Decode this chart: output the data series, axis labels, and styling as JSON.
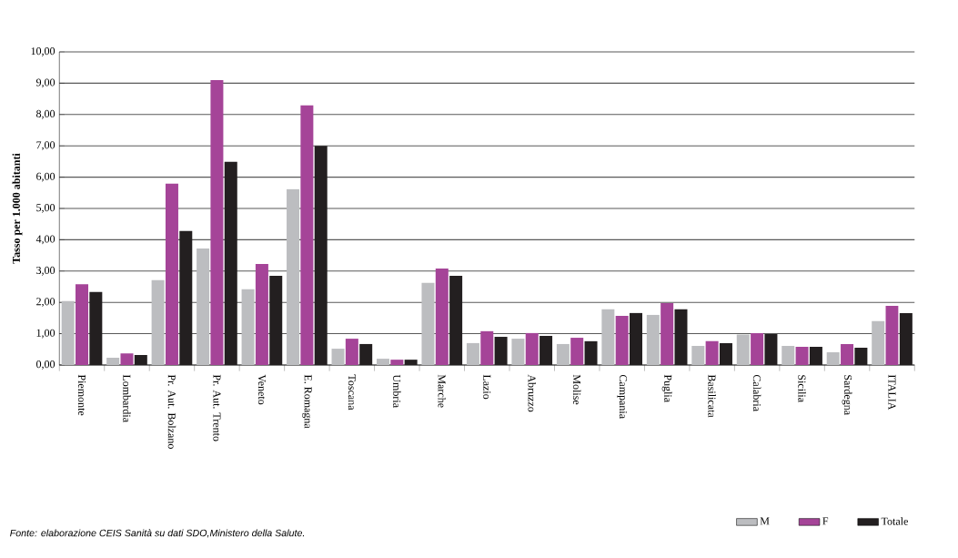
{
  "chart_data": {
    "type": "bar",
    "ylabel": "Tasso per 1.000 abitanti",
    "categories": [
      "Piemonte",
      "Lombardia",
      "Pr. Aut. Bolzano",
      "Pr. Aut. Trento",
      "Veneto",
      "E. Romagna",
      "Toscana",
      "Umbria",
      "Marche",
      "Lazio",
      "Abruzzo",
      "Molise",
      "Campania",
      "Puglia",
      "Basilicata",
      "Calabria",
      "Sicilia",
      "Sardegna",
      "ITALIA"
    ],
    "series": [
      {
        "name": "M",
        "color": "#bcbdc0",
        "values": [
          2.04,
          0.23,
          2.71,
          3.72,
          2.42,
          5.62,
          0.52,
          0.2,
          2.62,
          0.7,
          0.84,
          0.67,
          1.78,
          1.6,
          0.61,
          0.97,
          0.61,
          0.41,
          1.4
        ]
      },
      {
        "name": "F",
        "color": "#a54498",
        "values": [
          2.58,
          0.37,
          5.79,
          9.1,
          3.23,
          8.29,
          0.84,
          0.17,
          3.08,
          1.08,
          1.02,
          0.87,
          1.57,
          1.98,
          0.76,
          1.02,
          0.58,
          0.67,
          1.89
        ]
      },
      {
        "name": "Totale",
        "color": "#231f20",
        "values": [
          2.33,
          0.32,
          4.28,
          6.49,
          2.85,
          7.0,
          0.67,
          0.17,
          2.85,
          0.9,
          0.93,
          0.76,
          1.66,
          1.78,
          0.7,
          0.99,
          0.58,
          0.55,
          1.66
        ]
      }
    ],
    "ylim": [
      0,
      10
    ],
    "yticks": [
      {
        "value": 0,
        "label": "0,00"
      },
      {
        "value": 1,
        "label": "1,00"
      },
      {
        "value": 2,
        "label": "2,00"
      },
      {
        "value": 3,
        "label": "3,00"
      },
      {
        "value": 4,
        "label": "4,00"
      },
      {
        "value": 5,
        "label": "5,00"
      },
      {
        "value": 6,
        "label": "6,00"
      },
      {
        "value": 7,
        "label": "7,00"
      },
      {
        "value": 8,
        "label": "8,00"
      },
      {
        "value": 9,
        "label": "9,00"
      },
      {
        "value": 10,
        "label": "10,00"
      }
    ],
    "grid": "y",
    "legend": "bottom right",
    "annotations": [
      "Fonte: elaborazione CEIS Sanità su dati SDO,Ministero della Salute."
    ]
  }
}
